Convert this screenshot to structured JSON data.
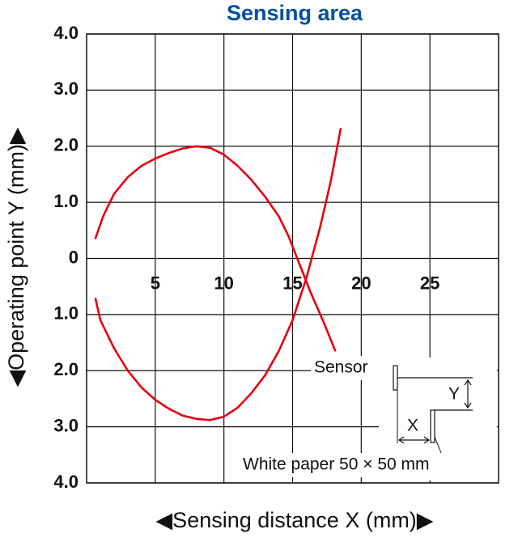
{
  "chart_data": {
    "type": "line",
    "title": "Sensing area",
    "x_label": "◀Sensing distance X (mm)▶",
    "y_label": "◀Operating point Y (mm)▶",
    "xlim": [
      0,
      30
    ],
    "xticks": [
      5,
      10,
      15,
      20,
      25
    ],
    "ylim": [
      -4,
      4
    ],
    "yticks": [
      {
        "value": 4,
        "label": "4.0"
      },
      {
        "value": 3,
        "label": "3.0"
      },
      {
        "value": 2,
        "label": "2.0"
      },
      {
        "value": 1,
        "label": "1.0"
      },
      0,
      {
        "value": -1,
        "label": "1.0"
      },
      {
        "value": -2,
        "label": "2.0"
      },
      {
        "value": -3,
        "label": "3.0"
      },
      {
        "value": -4,
        "label": "4.0"
      }
    ],
    "grid": true,
    "series": [
      {
        "color": "#e60012",
        "x": [
          0.65,
          1.2,
          2,
          3,
          4,
          5,
          6,
          7,
          8,
          9,
          10,
          11,
          12,
          13,
          14,
          14.7,
          15.5,
          16.3,
          17.2,
          18.1
        ],
        "values": [
          0.36,
          0.75,
          1.15,
          1.45,
          1.65,
          1.78,
          1.88,
          1.96,
          2.0,
          1.97,
          1.85,
          1.65,
          1.4,
          1.1,
          0.75,
          0.4,
          -0.1,
          -0.6,
          -1.1,
          -1.64
        ]
      },
      {
        "color": "#e60012",
        "x": [
          0.65,
          1,
          2,
          3,
          4,
          5,
          6,
          7,
          8,
          9,
          10,
          11,
          12,
          13,
          14,
          15,
          16,
          17,
          17.8,
          18.5
        ],
        "values": [
          -0.72,
          -1.1,
          -1.6,
          -2.0,
          -2.3,
          -2.52,
          -2.68,
          -2.8,
          -2.86,
          -2.88,
          -2.82,
          -2.66,
          -2.4,
          -2.08,
          -1.65,
          -1.1,
          -0.35,
          0.55,
          1.4,
          2.31
        ]
      }
    ],
    "annotations": [
      "Sensor",
      "White paper 50 × 50 mm",
      "X",
      "Y"
    ]
  }
}
